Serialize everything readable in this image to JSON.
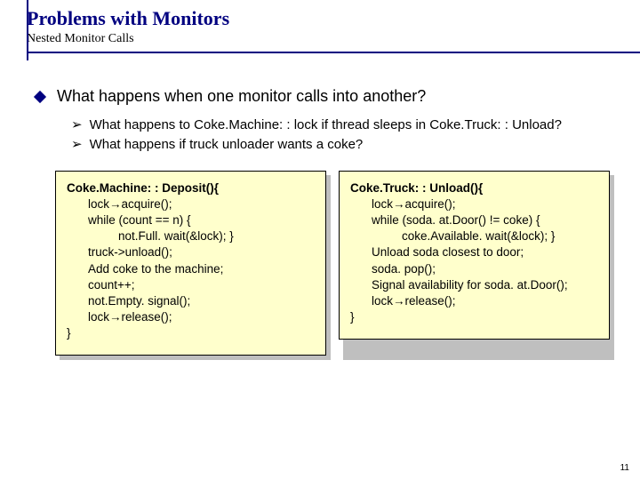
{
  "header": {
    "title": "Problems with Monitors",
    "subtitle": "Nested Monitor Calls"
  },
  "main_bullet": "What happens when one monitor calls into another?",
  "sub_bullets": {
    "b1": "What happens to Coke.Machine: : lock if thread sleeps in Coke.Truck: : Unload?",
    "b2": "What happens if truck unloader wants a coke?"
  },
  "code_left": {
    "l1": "Coke.Machine: : Deposit(){",
    "l2a": "lock",
    "l2b": "acquire();",
    "l3": "while (count == n) {",
    "l4": "not.Full. wait(&lock); }",
    "l5": "truck->unload();",
    "l6": "Add coke to the machine;",
    "l7": "count++;",
    "l8": "not.Empty. signal();",
    "l9a": "lock",
    "l9b": "release();",
    "l10": "}"
  },
  "code_right": {
    "l1": "Coke.Truck: : Unload(){",
    "l2a": "lock",
    "l2b": "acquire();",
    "l3": "while (soda. at.Door() != coke) {",
    "l4": "coke.Available. wait(&lock); }",
    "l5": "Unload soda closest to door;",
    "l6": "soda. pop();",
    "l7": "Signal availability for soda. at.Door();",
    "l8a": "lock",
    "l8b": "release();",
    "l9": "}"
  },
  "page_number": "11",
  "colors": {
    "accent": "#000080",
    "code_bg": "#ffffcc",
    "shadow": "#bfbfbf"
  }
}
